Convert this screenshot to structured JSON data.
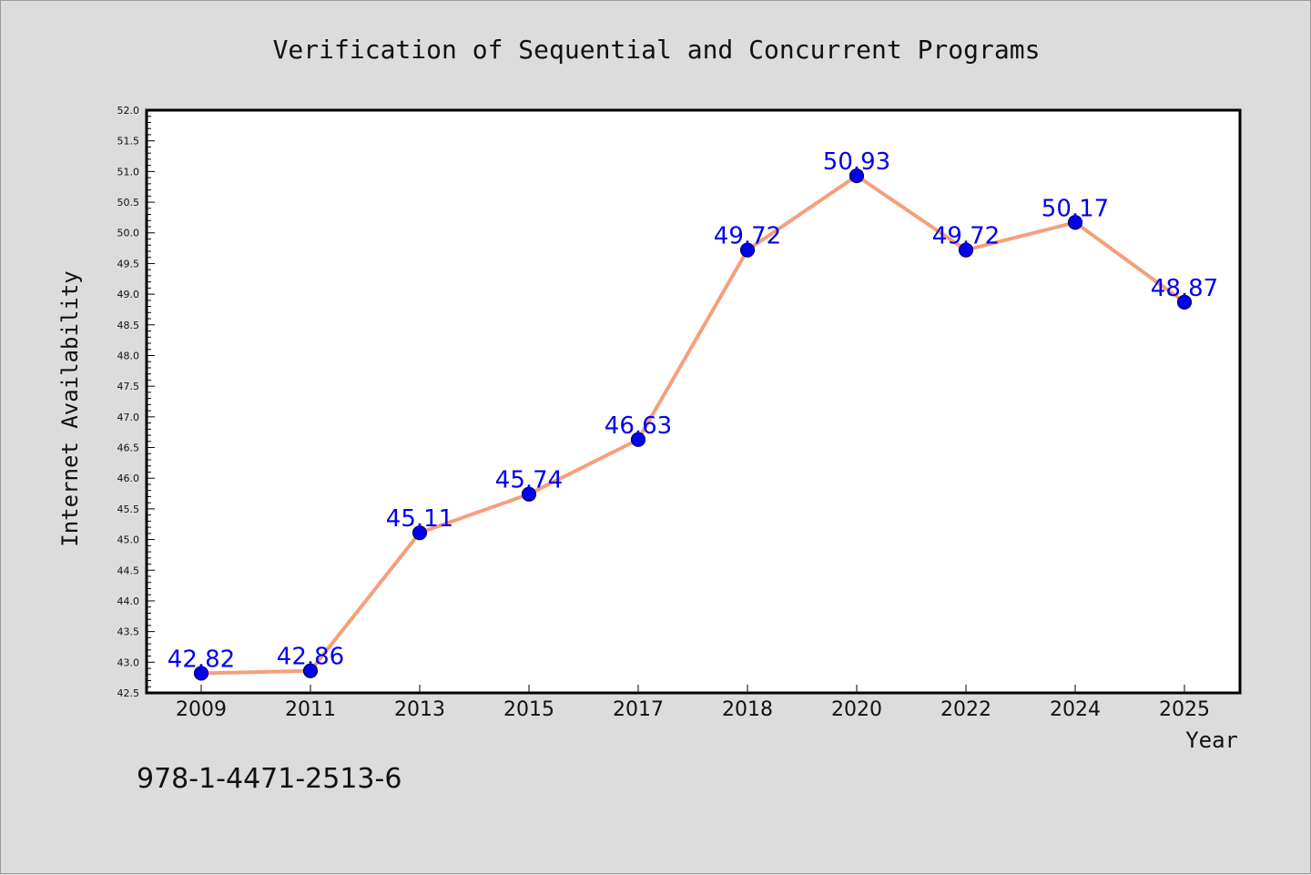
{
  "colors": {
    "background": "#dcdcdc",
    "plot_background": "#ffffff",
    "line": "#f4a07c",
    "marker": "#0000ee",
    "marker_edge": "#000066",
    "data_label": "#0000ee"
  },
  "footer": {
    "isbn": "978-1-4471-2513-6"
  },
  "chart_data": {
    "type": "line",
    "title": "Verification of Sequential and Concurrent Programs",
    "xlabel": "Year",
    "ylabel": "Internet Availability",
    "categories": [
      "2009",
      "2011",
      "2013",
      "2015",
      "2017",
      "2018",
      "2020",
      "2022",
      "2024",
      "2025"
    ],
    "series": [
      {
        "values": [
          42.82,
          42.86,
          45.11,
          45.74,
          46.63,
          49.72,
          50.93,
          49.72,
          50.17,
          48.87
        ]
      }
    ],
    "data_labels": [
      "42.82",
      "42.86",
      "45.11",
      "45.74",
      "46.63",
      "49.72",
      "50.93",
      "49.72",
      "50.17",
      "48.87"
    ],
    "ylim": [
      42.5,
      52.0
    ],
    "yticks": [
      "42.5",
      "43.0",
      "43.5",
      "44.0",
      "44.5",
      "45.0",
      "45.5",
      "46.0",
      "46.5",
      "47.0",
      "47.5",
      "48.0",
      "48.5",
      "49.0",
      "49.5",
      "50.0",
      "50.5",
      "51.0",
      "51.5",
      "52.0"
    ],
    "grid": false,
    "legend": "none"
  }
}
